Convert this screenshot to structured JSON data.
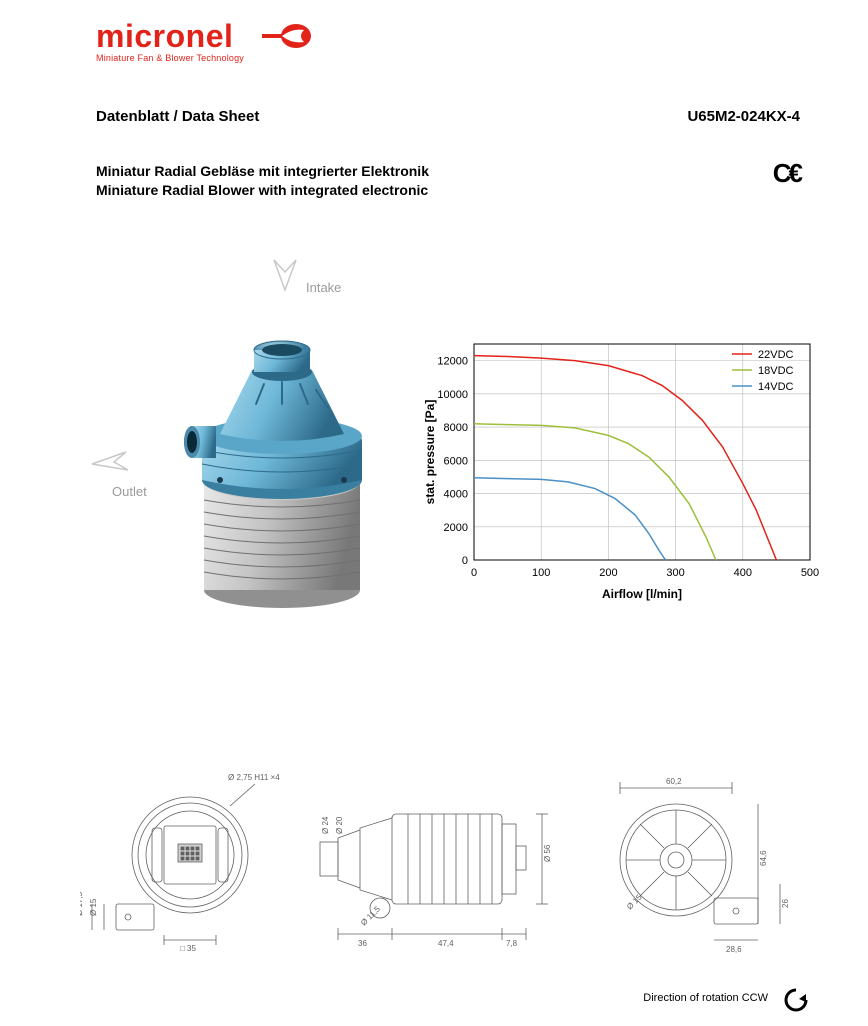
{
  "brand": {
    "name": "micronel",
    "tagline": "Miniature Fan & Blower Technology",
    "color": "#e2231a"
  },
  "header": {
    "left": "Datenblatt / Data Sheet",
    "right": "U65M2-024KX-4"
  },
  "subtitle": {
    "line1": "Miniatur Radial Gebläse mit integrierter Elektronik",
    "line2": "Miniature Radial Blower with integrated electronic"
  },
  "ce": "CE",
  "render": {
    "intake": "Intake",
    "outlet": "Outlet",
    "arrow_color": "#c8c8c8",
    "body_top_color": "#6fb8d8",
    "body_top_shadow": "#3a7fa0",
    "body_bottom_color": "#b8b8b8",
    "body_bottom_shadow": "#808080"
  },
  "chart": {
    "type": "line",
    "xlabel": "Airflow  [l/min]",
    "ylabel": "stat. pressure [Pa]",
    "label_fontsize": 12,
    "xlim": [
      0,
      500
    ],
    "ylim": [
      0,
      13000
    ],
    "xticks": [
      0,
      100,
      200,
      300,
      400,
      500
    ],
    "yticks": [
      0,
      2000,
      4000,
      6000,
      8000,
      10000,
      12000
    ],
    "grid_color": "#b8b8b8",
    "axis_color": "#000000",
    "background": "#ffffff",
    "legend_pos": "top-right",
    "line_width": 1.5,
    "series": [
      {
        "name": "22VDC",
        "color": "#e2231a",
        "x": [
          0,
          50,
          100,
          150,
          200,
          250,
          280,
          310,
          340,
          370,
          400,
          420,
          440,
          450
        ],
        "y": [
          12300,
          12250,
          12150,
          12000,
          11700,
          11100,
          10500,
          9600,
          8400,
          6800,
          4600,
          3000,
          1000,
          0
        ]
      },
      {
        "name": "18VDC",
        "color": "#9dbf3b",
        "x": [
          0,
          50,
          100,
          150,
          200,
          230,
          260,
          290,
          320,
          345,
          360
        ],
        "y": [
          8200,
          8150,
          8100,
          7950,
          7500,
          7000,
          6200,
          5000,
          3400,
          1400,
          0
        ]
      },
      {
        "name": "14VDC",
        "color": "#4a90c7",
        "x": [
          0,
          50,
          100,
          140,
          180,
          210,
          240,
          260,
          275,
          285
        ],
        "y": [
          4950,
          4900,
          4850,
          4700,
          4300,
          3700,
          2700,
          1600,
          600,
          0
        ]
      }
    ]
  },
  "drawings": {
    "stroke": "#606060",
    "fill": "#e8e8e8",
    "dims_rear": {
      "hole": "Ø 2,75 H11 ×4",
      "outlet_od": "Ø 17,5",
      "outlet_id": "Ø 15",
      "sq": "□ 35"
    },
    "dims_side": {
      "intake_od": "Ø 24",
      "intake_id": "Ø 20",
      "outlet": "Ø 11,5",
      "body_dia": "Ø 56",
      "l1": "36",
      "l2": "47,4",
      "l3": "7,8"
    },
    "dims_front": {
      "w": "60,2",
      "h": "64,6",
      "outlet": "Ø 15",
      "ext": "28,6",
      "side": "26"
    }
  },
  "rotation": {
    "label": "Direction of rotation CCW"
  }
}
